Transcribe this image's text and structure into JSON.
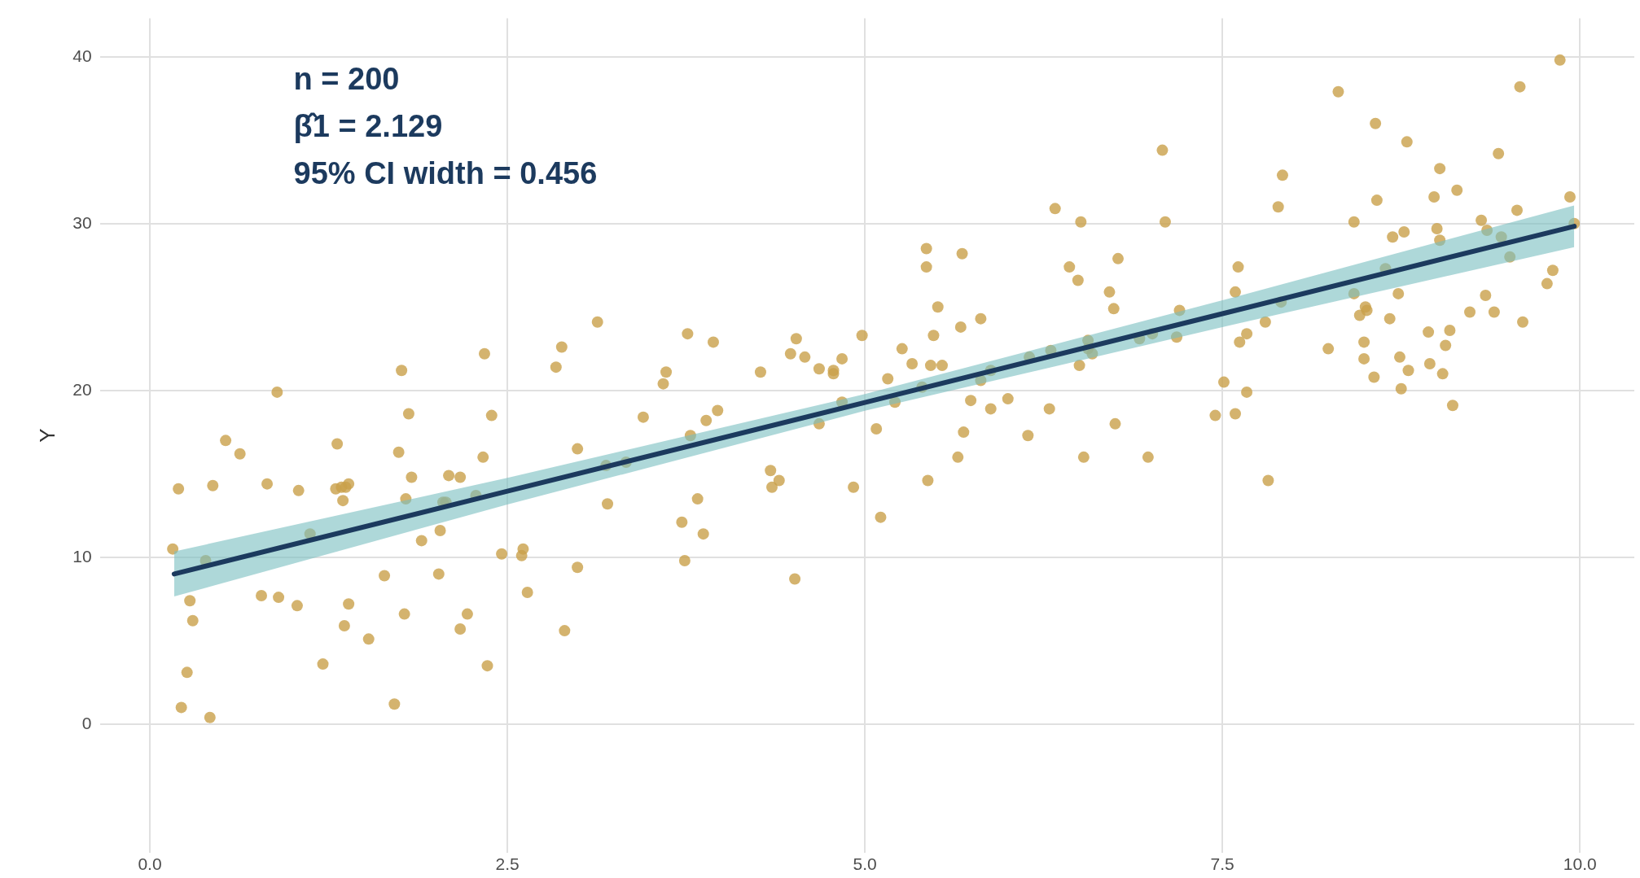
{
  "chart_data": {
    "type": "scatter",
    "ylabel": "Y",
    "xlim": [
      -0.35,
      10.38
    ],
    "ylim": [
      -7.7,
      42.3
    ],
    "xticks": [
      {
        "value": 0,
        "label": "0.0"
      },
      {
        "value": 2.5,
        "label": "2.5"
      },
      {
        "value": 5,
        "label": "5.0"
      },
      {
        "value": 7.5,
        "label": "7.5"
      },
      {
        "value": 10,
        "label": "10.0"
      }
    ],
    "yticks": [
      0,
      10,
      20,
      30,
      40
    ],
    "grid": true,
    "legend": false,
    "annotations": [
      "n = 200",
      "β̂1 = 2.129",
      "95% CI width = 0.456"
    ],
    "series": [
      {
        "marker": "circle",
        "color": "#c9a04a",
        "x": [
          0.16,
          0.2,
          0.22,
          0.26,
          0.28,
          0.3,
          0.39,
          0.42,
          0.44,
          0.53,
          0.63,
          0.78,
          0.82,
          0.89,
          0.9,
          1.03,
          1.04,
          1.12,
          1.21,
          1.3,
          1.31,
          1.34,
          1.35,
          1.36,
          1.37,
          1.39,
          1.39,
          1.53,
          1.64,
          1.71,
          1.74,
          1.76,
          1.78,
          1.79,
          1.81,
          1.83,
          1.9,
          2.02,
          2.03,
          2.05,
          2.07,
          2.09,
          2.17,
          2.17,
          2.22,
          2.28,
          2.33,
          2.34,
          2.36,
          2.39,
          2.46,
          2.6,
          2.61,
          2.64,
          2.84,
          2.88,
          2.9,
          2.99,
          2.99,
          3.13,
          3.19,
          3.2,
          3.33,
          3.45,
          3.59,
          3.61,
          3.72,
          3.74,
          3.76,
          3.78,
          3.83,
          3.87,
          3.89,
          3.94,
          3.97,
          4.27,
          4.34,
          4.35,
          4.4,
          4.48,
          4.51,
          4.52,
          4.58,
          4.68,
          4.68,
          4.78,
          4.78,
          4.84,
          4.84,
          4.92,
          4.98,
          5.08,
          5.11,
          5.16,
          5.21,
          5.26,
          5.33,
          5.4,
          5.43,
          5.43,
          5.44,
          5.46,
          5.48,
          5.51,
          5.54,
          5.65,
          5.67,
          5.68,
          5.69,
          5.74,
          5.81,
          5.81,
          5.88,
          5.88,
          6.0,
          6.14,
          6.15,
          6.29,
          6.3,
          6.33,
          6.43,
          6.49,
          6.5,
          6.51,
          6.53,
          6.56,
          6.56,
          6.59,
          6.71,
          6.74,
          6.75,
          6.77,
          6.92,
          6.98,
          7.01,
          7.08,
          7.1,
          7.18,
          7.2,
          7.45,
          7.51,
          7.59,
          7.59,
          7.61,
          7.62,
          7.67,
          7.67,
          7.8,
          7.82,
          7.89,
          7.91,
          7.92,
          8.24,
          8.31,
          8.42,
          8.42,
          8.46,
          8.5,
          8.51,
          8.49,
          8.49,
          8.56,
          8.57,
          8.58,
          8.64,
          8.67,
          8.69,
          8.73,
          8.74,
          8.75,
          8.77,
          8.79,
          8.8,
          8.94,
          8.95,
          8.98,
          9.0,
          9.02,
          9.02,
          9.04,
          9.06,
          9.09,
          9.11,
          9.14,
          9.23,
          9.31,
          9.34,
          9.35,
          9.4,
          9.43,
          9.45,
          9.51,
          9.56,
          9.58,
          9.6,
          9.77,
          9.81,
          9.86,
          9.93,
          9.96
        ],
        "values": [
          10.5,
          14.1,
          1.0,
          3.1,
          7.4,
          6.2,
          9.8,
          0.4,
          14.3,
          17.0,
          16.2,
          7.7,
          14.4,
          19.9,
          7.6,
          7.1,
          14.0,
          11.4,
          3.6,
          14.1,
          16.8,
          14.2,
          13.4,
          5.9,
          14.2,
          7.2,
          14.4,
          5.1,
          8.9,
          1.2,
          16.3,
          21.2,
          6.6,
          13.5,
          18.6,
          14.8,
          11.0,
          9.0,
          11.6,
          13.3,
          13.3,
          14.9,
          5.7,
          14.8,
          6.6,
          13.7,
          16.0,
          22.2,
          3.5,
          18.5,
          10.2,
          10.1,
          10.5,
          7.9,
          21.4,
          22.6,
          5.6,
          16.5,
          9.4,
          24.1,
          15.5,
          13.2,
          15.7,
          18.4,
          20.4,
          21.1,
          12.1,
          9.8,
          23.4,
          17.3,
          13.5,
          11.4,
          18.2,
          22.9,
          18.8,
          21.1,
          15.2,
          14.2,
          14.6,
          22.2,
          8.7,
          23.1,
          22.0,
          18.0,
          21.3,
          21.2,
          21.0,
          19.3,
          21.9,
          14.2,
          23.3,
          17.7,
          12.4,
          20.7,
          19.3,
          22.5,
          21.6,
          20.2,
          28.5,
          27.4,
          14.6,
          21.5,
          23.3,
          25.0,
          21.5,
          16.0,
          23.8,
          28.2,
          17.5,
          19.4,
          20.6,
          24.3,
          21.2,
          18.9,
          19.5,
          17.3,
          22.0,
          18.9,
          22.4,
          30.9,
          27.4,
          26.6,
          21.5,
          30.1,
          16.0,
          23.0,
          22.5,
          22.2,
          25.9,
          24.9,
          18.0,
          27.9,
          23.1,
          16.0,
          23.4,
          34.4,
          30.1,
          23.2,
          24.8,
          18.5,
          20.5,
          25.9,
          18.6,
          27.4,
          22.9,
          23.4,
          19.9,
          24.1,
          14.6,
          31.0,
          25.3,
          32.9,
          22.5,
          37.9,
          25.8,
          30.1,
          24.5,
          25.0,
          24.8,
          22.9,
          21.9,
          20.8,
          36.0,
          31.4,
          27.3,
          24.3,
          29.2,
          25.8,
          22.0,
          20.1,
          29.5,
          34.9,
          21.2,
          23.5,
          21.6,
          31.6,
          29.7,
          29.0,
          33.3,
          21.0,
          22.7,
          23.6,
          19.1,
          32.0,
          24.7,
          30.2,
          25.7,
          29.6,
          24.7,
          34.2,
          29.2,
          28.0,
          30.8,
          38.2,
          24.1,
          26.4,
          27.2,
          39.8,
          31.6,
          30.0
        ]
      },
      {
        "type": "line",
        "color": "#1c3a5e",
        "x": [
          0.17,
          2.5,
          5,
          7.5,
          9.96
        ],
        "values": [
          9.0,
          13.96,
          19.28,
          24.6,
          29.84
        ],
        "lower": [
          7.65,
          13.16,
          18.78,
          23.8,
          28.59
        ],
        "upper": [
          10.35,
          14.76,
          19.78,
          25.4,
          31.09
        ]
      }
    ]
  }
}
